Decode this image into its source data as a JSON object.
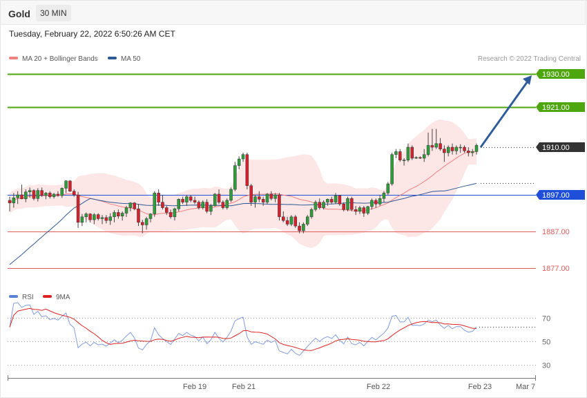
{
  "header": {
    "instrument": "Gold",
    "timeframe": "30 MIN"
  },
  "datetime": "Tuesday, February 22, 2022 6:50:26 AM CET",
  "legend": {
    "ma20": {
      "label": "MA 20 + Bollinger Bands",
      "color": "#f08080"
    },
    "ma50": {
      "label": "MA 50",
      "color": "#2e5894"
    }
  },
  "credit": "Research © 2022 Trading Central",
  "rsi_legend": {
    "rsi": {
      "label": "RSI",
      "color": "#5b7fd6"
    },
    "ma9": {
      "label": "9MA",
      "color": "#dd2222"
    }
  },
  "chart_data": [
    {
      "type": "candlestick",
      "ylim": [
        1870,
        1935
      ],
      "x_ticks": [
        "Feb 19",
        "Feb 21",
        "Feb 22",
        "Feb 23",
        "Mar 7"
      ],
      "price_levels": [
        {
          "value": 1930.0,
          "label": "1930.00",
          "kind": "target",
          "color": "#4ea60e"
        },
        {
          "value": 1921.0,
          "label": "1921.00",
          "kind": "resistance",
          "color": "#4ea60e"
        },
        {
          "value": 1910.0,
          "label": "1910.00",
          "kind": "last",
          "color": "#333333"
        },
        {
          "value": 1897.0,
          "label": "1897.00",
          "kind": "pivot",
          "color": "#1f4fd8"
        },
        {
          "value": 1887.0,
          "label": "1887.00",
          "kind": "support",
          "color": "#e05a5a"
        },
        {
          "value": 1877.0,
          "label": "1877.00",
          "kind": "support",
          "color": "#e05a5a"
        }
      ],
      "bullish_target_arrow": {
        "from": 1910.0,
        "to": 1930.0
      },
      "candles": [
        [
          1895.5,
          1896.5,
          1892.5,
          1894.8
        ],
        [
          1894.8,
          1897.5,
          1893.5,
          1896.2
        ],
        [
          1896.2,
          1898.0,
          1894.5,
          1897.0
        ],
        [
          1897.0,
          1899.8,
          1895.8,
          1895.9
        ],
        [
          1895.9,
          1898.5,
          1895.0,
          1897.8
        ],
        [
          1897.8,
          1899.0,
          1896.2,
          1898.2
        ],
        [
          1898.2,
          1898.5,
          1895.5,
          1896.0
        ],
        [
          1896.0,
          1898.8,
          1895.2,
          1898.2
        ],
        [
          1898.2,
          1899.0,
          1896.5,
          1896.8
        ],
        [
          1896.8,
          1897.8,
          1895.8,
          1897.5
        ],
        [
          1897.5,
          1898.0,
          1896.0,
          1896.5
        ],
        [
          1896.5,
          1897.5,
          1896.0,
          1897.2
        ],
        [
          1897.2,
          1898.0,
          1896.5,
          1896.8
        ],
        [
          1896.8,
          1899.0,
          1896.2,
          1898.8
        ],
        [
          1898.8,
          1901.0,
          1897.5,
          1900.8
        ],
        [
          1900.8,
          1901.0,
          1897.8,
          1898.0
        ],
        [
          1898.0,
          1898.5,
          1896.5,
          1897.0
        ],
        [
          1897.0,
          1897.8,
          1888.0,
          1889.5
        ],
        [
          1889.5,
          1891.8,
          1888.5,
          1891.0
        ],
        [
          1891.0,
          1892.2,
          1889.5,
          1891.8
        ],
        [
          1891.8,
          1892.0,
          1889.5,
          1890.2
        ],
        [
          1890.2,
          1892.0,
          1889.0,
          1891.6
        ],
        [
          1891.6,
          1892.0,
          1890.0,
          1890.5
        ],
        [
          1890.5,
          1891.5,
          1889.0,
          1890.8
        ],
        [
          1890.8,
          1891.5,
          1889.2,
          1890.0
        ],
        [
          1890.0,
          1892.0,
          1888.8,
          1891.0
        ],
        [
          1891.0,
          1892.8,
          1889.5,
          1892.2
        ],
        [
          1892.2,
          1893.0,
          1890.5,
          1891.2
        ],
        [
          1891.2,
          1892.5,
          1890.0,
          1892.0
        ],
        [
          1892.0,
          1894.0,
          1891.0,
          1893.5
        ],
        [
          1893.5,
          1895.0,
          1892.5,
          1894.8
        ],
        [
          1894.8,
          1895.0,
          1892.8,
          1893.2
        ],
        [
          1893.2,
          1894.5,
          1888.5,
          1889.5
        ],
        [
          1889.5,
          1890.2,
          1886.5,
          1888.8
        ],
        [
          1888.8,
          1891.0,
          1887.5,
          1890.5
        ],
        [
          1890.5,
          1892.0,
          1889.5,
          1891.8
        ],
        [
          1891.8,
          1898.0,
          1891.0,
          1897.5
        ],
        [
          1897.5,
          1898.5,
          1894.0,
          1895.0
        ],
        [
          1895.0,
          1897.0,
          1893.0,
          1893.5
        ],
        [
          1893.5,
          1894.0,
          1891.5,
          1892.2
        ],
        [
          1892.2,
          1893.0,
          1890.5,
          1891.0
        ],
        [
          1891.0,
          1893.5,
          1890.0,
          1893.2
        ],
        [
          1893.2,
          1896.0,
          1892.5,
          1895.8
        ],
        [
          1895.8,
          1896.5,
          1894.5,
          1895.0
        ],
        [
          1895.0,
          1897.0,
          1894.0,
          1896.5
        ],
        [
          1896.5,
          1897.0,
          1895.0,
          1895.5
        ],
        [
          1895.5,
          1896.5,
          1894.5,
          1895.0
        ],
        [
          1895.0,
          1895.5,
          1893.0,
          1893.5
        ],
        [
          1893.5,
          1895.5,
          1893.0,
          1895.0
        ],
        [
          1895.0,
          1895.8,
          1892.0,
          1892.5
        ],
        [
          1892.5,
          1894.5,
          1891.5,
          1894.0
        ],
        [
          1894.0,
          1897.5,
          1893.8,
          1897.2
        ],
        [
          1897.2,
          1898.5,
          1894.5,
          1895.0
        ],
        [
          1895.0,
          1895.5,
          1893.0,
          1893.5
        ],
        [
          1893.5,
          1896.0,
          1893.0,
          1895.5
        ],
        [
          1895.5,
          1899.0,
          1895.0,
          1898.5
        ],
        [
          1898.5,
          1906.0,
          1898.0,
          1905.0
        ],
        [
          1905.0,
          1907.5,
          1904.0,
          1906.8
        ],
        [
          1906.8,
          1908.5,
          1906.0,
          1908.0
        ],
        [
          1908.0,
          1908.5,
          1898.5,
          1899.5
        ],
        [
          1899.5,
          1900.0,
          1894.0,
          1895.0
        ],
        [
          1895.0,
          1897.0,
          1893.5,
          1896.5
        ],
        [
          1896.5,
          1898.0,
          1895.0,
          1895.8
        ],
        [
          1895.8,
          1896.5,
          1894.0,
          1895.0
        ],
        [
          1895.0,
          1897.5,
          1894.5,
          1897.2
        ],
        [
          1897.2,
          1898.0,
          1895.5,
          1896.0
        ],
        [
          1896.0,
          1897.5,
          1895.0,
          1897.0
        ],
        [
          1897.0,
          1897.5,
          1890.0,
          1891.0
        ],
        [
          1891.0,
          1892.5,
          1889.5,
          1890.0
        ],
        [
          1890.0,
          1891.0,
          1888.5,
          1889.0
        ],
        [
          1889.0,
          1891.5,
          1888.5,
          1891.0
        ],
        [
          1891.0,
          1891.5,
          1888.0,
          1888.5
        ],
        [
          1888.5,
          1889.5,
          1886.5,
          1887.2
        ],
        [
          1887.2,
          1889.5,
          1886.5,
          1889.0
        ],
        [
          1889.0,
          1891.5,
          1888.5,
          1891.0
        ],
        [
          1891.0,
          1893.5,
          1890.5,
          1893.0
        ],
        [
          1893.0,
          1895.5,
          1892.5,
          1895.0
        ],
        [
          1895.0,
          1896.0,
          1893.0,
          1893.5
        ],
        [
          1893.5,
          1895.5,
          1893.0,
          1895.0
        ],
        [
          1895.0,
          1896.0,
          1894.0,
          1895.8
        ],
        [
          1895.8,
          1896.5,
          1894.5,
          1895.0
        ],
        [
          1895.0,
          1897.5,
          1894.5,
          1896.8
        ],
        [
          1896.8,
          1897.0,
          1894.0,
          1894.5
        ],
        [
          1894.5,
          1895.0,
          1892.5,
          1893.0
        ],
        [
          1893.0,
          1896.5,
          1892.5,
          1896.0
        ],
        [
          1896.0,
          1896.5,
          1892.5,
          1893.0
        ],
        [
          1893.0,
          1894.0,
          1891.5,
          1892.5
        ],
        [
          1892.5,
          1894.0,
          1891.8,
          1893.5
        ],
        [
          1893.5,
          1894.0,
          1891.0,
          1892.0
        ],
        [
          1892.0,
          1894.0,
          1891.5,
          1893.8
        ],
        [
          1893.8,
          1896.0,
          1893.0,
          1895.5
        ],
        [
          1895.5,
          1896.0,
          1893.5,
          1894.5
        ],
        [
          1894.5,
          1897.0,
          1894.0,
          1896.0
        ],
        [
          1896.0,
          1898.0,
          1895.0,
          1897.5
        ],
        [
          1897.5,
          1900.5,
          1897.0,
          1900.0
        ],
        [
          1900.0,
          1908.5,
          1899.5,
          1908.0
        ],
        [
          1908.0,
          1909.5,
          1907.0,
          1908.8
        ],
        [
          1908.8,
          1909.5,
          1906.0,
          1906.5
        ],
        [
          1906.5,
          1907.0,
          1905.0,
          1906.5
        ],
        [
          1906.5,
          1911.0,
          1906.0,
          1910.0
        ],
        [
          1910.0,
          1910.5,
          1906.5,
          1907.0
        ],
        [
          1907.0,
          1907.5,
          1906.8,
          1907.2
        ],
        [
          1907.2,
          1907.5,
          1906.8,
          1907.0
        ],
        [
          1907.0,
          1909.5,
          1906.0,
          1908.0
        ],
        [
          1908.0,
          1914.0,
          1907.5,
          1910.5
        ],
        [
          1910.5,
          1915.0,
          1909.0,
          1910.0
        ],
        [
          1910.0,
          1915.0,
          1909.5,
          1911.0
        ],
        [
          1911.0,
          1912.5,
          1909.0,
          1909.5
        ],
        [
          1909.5,
          1910.5,
          1906.0,
          1908.5
        ],
        [
          1908.5,
          1910.5,
          1907.5,
          1910.0
        ],
        [
          1910.0,
          1911.0,
          1908.0,
          1909.0
        ],
        [
          1909.0,
          1910.5,
          1908.0,
          1910.0
        ],
        [
          1910.0,
          1910.8,
          1908.5,
          1910.0
        ],
        [
          1910.0,
          1910.5,
          1908.5,
          1909.0
        ],
        [
          1909.0,
          1910.0,
          1907.5,
          1908.5
        ],
        [
          1908.5,
          1909.5,
          1907.5,
          1908.8
        ],
        [
          1908.8,
          1911.0,
          1908.0,
          1910.5
        ]
      ]
    },
    {
      "type": "line",
      "name": "RSI",
      "y_ticks": [
        70,
        50,
        30
      ],
      "ylim": [
        20,
        80
      ],
      "series_order": [
        "RSI",
        "9MA"
      ]
    }
  ]
}
